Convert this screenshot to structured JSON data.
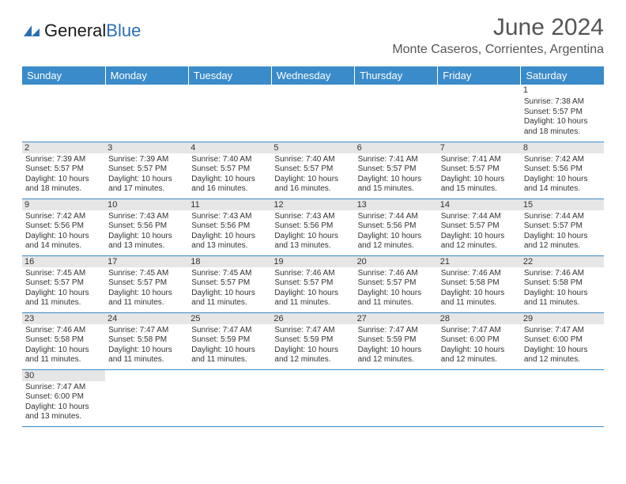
{
  "logo": {
    "general": "General",
    "blue": "Blue"
  },
  "title": "June 2024",
  "location": "Monte Caseros, Corrientes, Argentina",
  "weekdays": [
    "Sunday",
    "Monday",
    "Tuesday",
    "Wednesday",
    "Thursday",
    "Friday",
    "Saturday"
  ],
  "colors": {
    "header_bg": "#3a8bc9",
    "header_text": "#ffffff",
    "line": "#3a8bc9",
    "logo_blue": "#2a6fb5",
    "text": "#333333",
    "daybar": "#e6e6e6"
  },
  "weeks": [
    [
      null,
      null,
      null,
      null,
      null,
      null,
      {
        "n": "1",
        "sr": "Sunrise: 7:38 AM",
        "ss": "Sunset: 5:57 PM",
        "d1": "Daylight: 10 hours",
        "d2": "and 18 minutes.",
        "plain": true
      }
    ],
    [
      {
        "n": "2",
        "sr": "Sunrise: 7:39 AM",
        "ss": "Sunset: 5:57 PM",
        "d1": "Daylight: 10 hours",
        "d2": "and 18 minutes."
      },
      {
        "n": "3",
        "sr": "Sunrise: 7:39 AM",
        "ss": "Sunset: 5:57 PM",
        "d1": "Daylight: 10 hours",
        "d2": "and 17 minutes."
      },
      {
        "n": "4",
        "sr": "Sunrise: 7:40 AM",
        "ss": "Sunset: 5:57 PM",
        "d1": "Daylight: 10 hours",
        "d2": "and 16 minutes."
      },
      {
        "n": "5",
        "sr": "Sunrise: 7:40 AM",
        "ss": "Sunset: 5:57 PM",
        "d1": "Daylight: 10 hours",
        "d2": "and 16 minutes."
      },
      {
        "n": "6",
        "sr": "Sunrise: 7:41 AM",
        "ss": "Sunset: 5:57 PM",
        "d1": "Daylight: 10 hours",
        "d2": "and 15 minutes."
      },
      {
        "n": "7",
        "sr": "Sunrise: 7:41 AM",
        "ss": "Sunset: 5:57 PM",
        "d1": "Daylight: 10 hours",
        "d2": "and 15 minutes."
      },
      {
        "n": "8",
        "sr": "Sunrise: 7:42 AM",
        "ss": "Sunset: 5:56 PM",
        "d1": "Daylight: 10 hours",
        "d2": "and 14 minutes."
      }
    ],
    [
      {
        "n": "9",
        "sr": "Sunrise: 7:42 AM",
        "ss": "Sunset: 5:56 PM",
        "d1": "Daylight: 10 hours",
        "d2": "and 14 minutes."
      },
      {
        "n": "10",
        "sr": "Sunrise: 7:43 AM",
        "ss": "Sunset: 5:56 PM",
        "d1": "Daylight: 10 hours",
        "d2": "and 13 minutes."
      },
      {
        "n": "11",
        "sr": "Sunrise: 7:43 AM",
        "ss": "Sunset: 5:56 PM",
        "d1": "Daylight: 10 hours",
        "d2": "and 13 minutes."
      },
      {
        "n": "12",
        "sr": "Sunrise: 7:43 AM",
        "ss": "Sunset: 5:56 PM",
        "d1": "Daylight: 10 hours",
        "d2": "and 13 minutes."
      },
      {
        "n": "13",
        "sr": "Sunrise: 7:44 AM",
        "ss": "Sunset: 5:56 PM",
        "d1": "Daylight: 10 hours",
        "d2": "and 12 minutes."
      },
      {
        "n": "14",
        "sr": "Sunrise: 7:44 AM",
        "ss": "Sunset: 5:57 PM",
        "d1": "Daylight: 10 hours",
        "d2": "and 12 minutes."
      },
      {
        "n": "15",
        "sr": "Sunrise: 7:44 AM",
        "ss": "Sunset: 5:57 PM",
        "d1": "Daylight: 10 hours",
        "d2": "and 12 minutes."
      }
    ],
    [
      {
        "n": "16",
        "sr": "Sunrise: 7:45 AM",
        "ss": "Sunset: 5:57 PM",
        "d1": "Daylight: 10 hours",
        "d2": "and 11 minutes."
      },
      {
        "n": "17",
        "sr": "Sunrise: 7:45 AM",
        "ss": "Sunset: 5:57 PM",
        "d1": "Daylight: 10 hours",
        "d2": "and 11 minutes."
      },
      {
        "n": "18",
        "sr": "Sunrise: 7:45 AM",
        "ss": "Sunset: 5:57 PM",
        "d1": "Daylight: 10 hours",
        "d2": "and 11 minutes."
      },
      {
        "n": "19",
        "sr": "Sunrise: 7:46 AM",
        "ss": "Sunset: 5:57 PM",
        "d1": "Daylight: 10 hours",
        "d2": "and 11 minutes."
      },
      {
        "n": "20",
        "sr": "Sunrise: 7:46 AM",
        "ss": "Sunset: 5:57 PM",
        "d1": "Daylight: 10 hours",
        "d2": "and 11 minutes."
      },
      {
        "n": "21",
        "sr": "Sunrise: 7:46 AM",
        "ss": "Sunset: 5:58 PM",
        "d1": "Daylight: 10 hours",
        "d2": "and 11 minutes."
      },
      {
        "n": "22",
        "sr": "Sunrise: 7:46 AM",
        "ss": "Sunset: 5:58 PM",
        "d1": "Daylight: 10 hours",
        "d2": "and 11 minutes."
      }
    ],
    [
      {
        "n": "23",
        "sr": "Sunrise: 7:46 AM",
        "ss": "Sunset: 5:58 PM",
        "d1": "Daylight: 10 hours",
        "d2": "and 11 minutes."
      },
      {
        "n": "24",
        "sr": "Sunrise: 7:47 AM",
        "ss": "Sunset: 5:58 PM",
        "d1": "Daylight: 10 hours",
        "d2": "and 11 minutes."
      },
      {
        "n": "25",
        "sr": "Sunrise: 7:47 AM",
        "ss": "Sunset: 5:59 PM",
        "d1": "Daylight: 10 hours",
        "d2": "and 11 minutes."
      },
      {
        "n": "26",
        "sr": "Sunrise: 7:47 AM",
        "ss": "Sunset: 5:59 PM",
        "d1": "Daylight: 10 hours",
        "d2": "and 12 minutes."
      },
      {
        "n": "27",
        "sr": "Sunrise: 7:47 AM",
        "ss": "Sunset: 5:59 PM",
        "d1": "Daylight: 10 hours",
        "d2": "and 12 minutes."
      },
      {
        "n": "28",
        "sr": "Sunrise: 7:47 AM",
        "ss": "Sunset: 6:00 PM",
        "d1": "Daylight: 10 hours",
        "d2": "and 12 minutes."
      },
      {
        "n": "29",
        "sr": "Sunrise: 7:47 AM",
        "ss": "Sunset: 6:00 PM",
        "d1": "Daylight: 10 hours",
        "d2": "and 12 minutes."
      }
    ],
    [
      {
        "n": "30",
        "sr": "Sunrise: 7:47 AM",
        "ss": "Sunset: 6:00 PM",
        "d1": "Daylight: 10 hours",
        "d2": "and 13 minutes."
      },
      null,
      null,
      null,
      null,
      null,
      null
    ]
  ]
}
